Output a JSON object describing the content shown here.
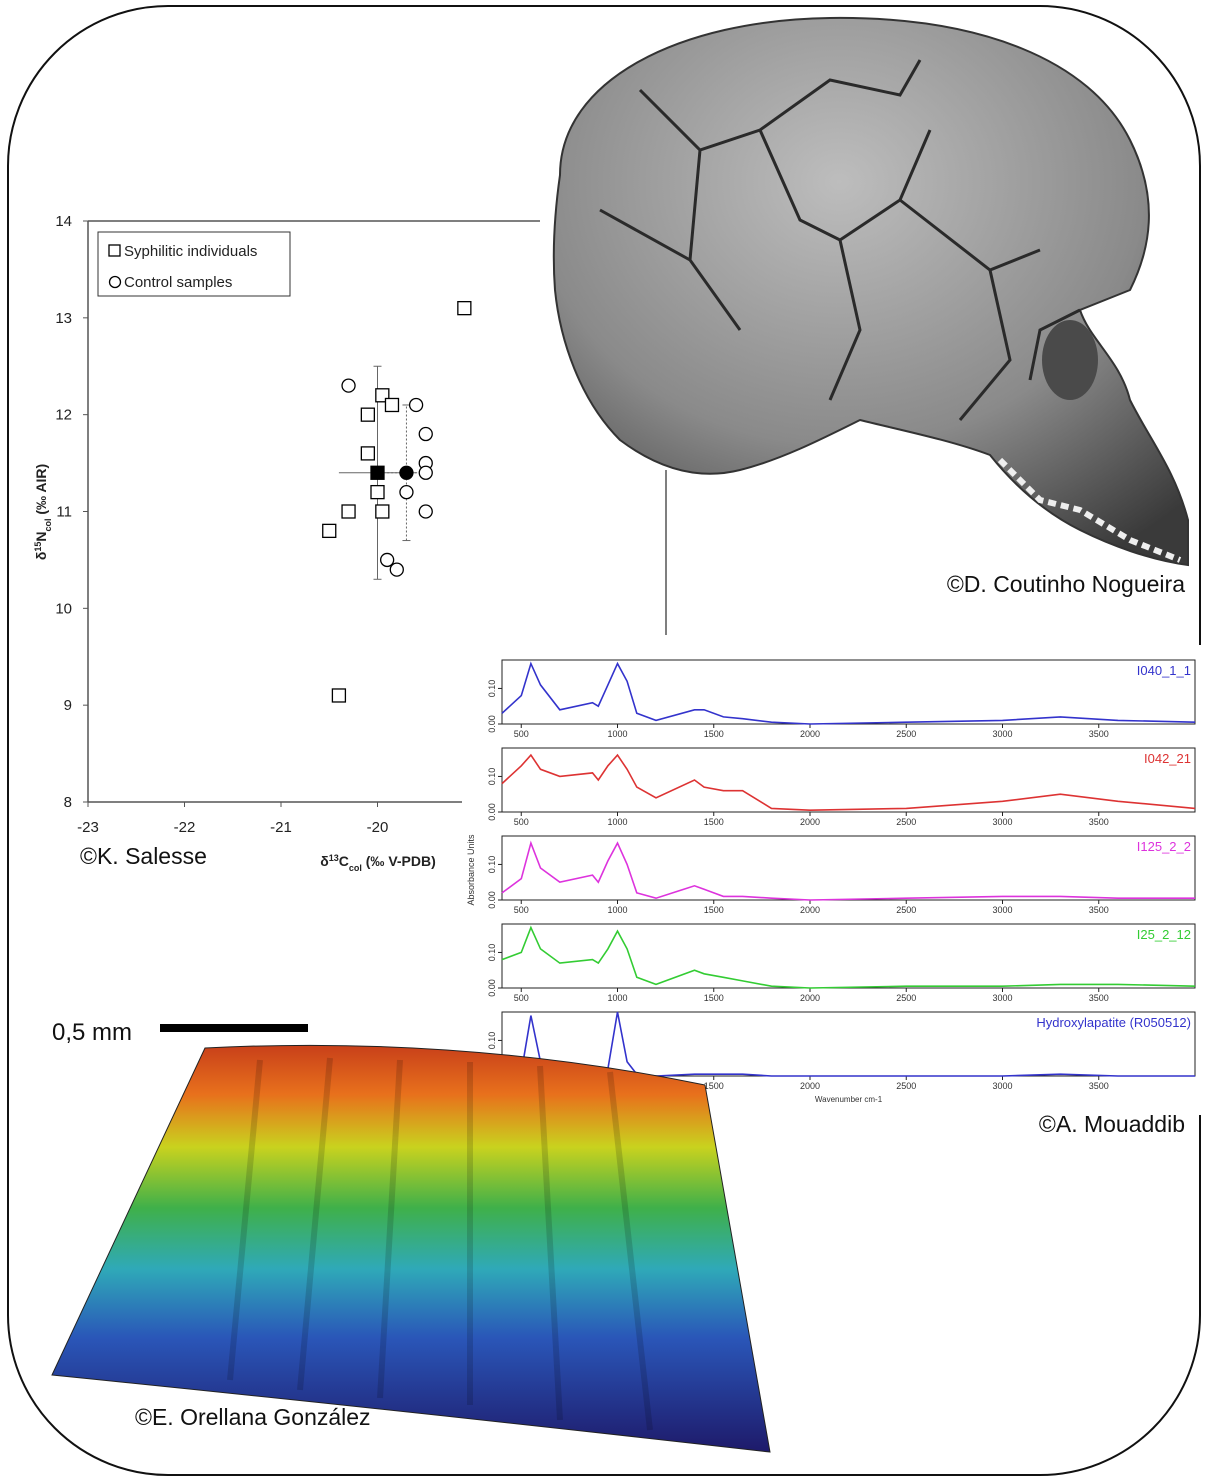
{
  "chart_data": [
    {
      "type": "scatter",
      "x_label": [
        "δ",
        "13",
        "C",
        "col",
        " (‰ V-PDB)"
      ],
      "y_label": [
        "δ",
        "15",
        "N",
        "col",
        " (‰ AIR)"
      ],
      "xlim": [
        -23,
        -19
      ],
      "xticks": [
        -23,
        -22,
        -21,
        -20
      ],
      "ylim": [
        8,
        14
      ],
      "yticks": [
        8,
        9,
        10,
        11,
        12,
        13,
        14
      ],
      "legend": "top-left",
      "series": [
        {
          "name": "Syphilitic individuals",
          "marker": "square",
          "color": "#000000",
          "x": [
            -19.1,
            -19.95,
            -19.85,
            -20.1,
            -20.1,
            -20,
            -20.3,
            -19.95,
            -20.5,
            -20.4
          ],
          "values": [
            13.1,
            12.2,
            12.1,
            12.0,
            11.6,
            11.2,
            11.0,
            11.0,
            10.8,
            9.1
          ],
          "mean_x": -20,
          "mean_y": 11.4,
          "x_error": 0.4,
          "y_error": 1.1
        },
        {
          "name": "Control samples",
          "marker": "circle",
          "color": "#000000",
          "x": [
            -20.3,
            -19.6,
            -19.5,
            -19.5,
            -19.5,
            -19.7,
            -19.5,
            -19.9,
            -19.8
          ],
          "values": [
            12.3,
            12.1,
            11.8,
            11.5,
            11.4,
            11.2,
            11.0,
            10.5,
            10.4
          ],
          "mean_x": -19.7,
          "mean_y": 11.4,
          "x_error": 0.2,
          "y_error": 0.7
        }
      ]
    },
    {
      "type": "line",
      "xlim": [
        400,
        4000
      ],
      "xticks": [
        500,
        1000,
        1500,
        2000,
        2500,
        3000,
        3500
      ],
      "ylim": [
        0,
        0.18
      ],
      "yticks": [
        {
          "value": 0,
          "label": "0.00"
        },
        {
          "value": 0.1,
          "label": "0.10"
        }
      ],
      "series": [
        {
          "name": "I040_1_1",
          "color": "#3333cc",
          "x": [
            400,
            500,
            550,
            600,
            700,
            870,
            900,
            950,
            1000,
            1050,
            1100,
            1200,
            1400,
            1450,
            1550,
            1650,
            1800,
            2000,
            2500,
            3000,
            3300,
            3600,
            4000
          ],
          "values": [
            0.03,
            0.08,
            0.17,
            0.11,
            0.04,
            0.06,
            0.05,
            0.11,
            0.17,
            0.12,
            0.03,
            0.01,
            0.04,
            0.04,
            0.02,
            0.015,
            0.005,
            0,
            0.005,
            0.01,
            0.02,
            0.01,
            0.005
          ]
        }
      ]
    },
    {
      "type": "line",
      "xlim": [
        400,
        4000
      ],
      "xticks": [
        500,
        1000,
        1500,
        2000,
        2500,
        3000,
        3500
      ],
      "ylim": [
        0,
        0.18
      ],
      "yticks": [
        {
          "value": 0,
          "label": "0.00"
        },
        {
          "value": 0.1,
          "label": "0.10"
        }
      ],
      "series": [
        {
          "name": "I042_21",
          "color": "#dd3333",
          "x": [
            400,
            500,
            550,
            600,
            700,
            870,
            900,
            950,
            1000,
            1050,
            1100,
            1200,
            1400,
            1450,
            1550,
            1650,
            1800,
            2000,
            2500,
            3000,
            3300,
            3600,
            4000
          ],
          "values": [
            0.08,
            0.13,
            0.16,
            0.12,
            0.1,
            0.11,
            0.09,
            0.13,
            0.16,
            0.12,
            0.07,
            0.04,
            0.09,
            0.07,
            0.06,
            0.06,
            0.01,
            0.005,
            0.01,
            0.03,
            0.05,
            0.03,
            0.01
          ]
        }
      ]
    },
    {
      "type": "line",
      "xlim": [
        400,
        4000
      ],
      "xticks": [
        500,
        1000,
        1500,
        2000,
        2500,
        3000,
        3500
      ],
      "ylim": [
        0,
        0.18
      ],
      "yticks": [
        {
          "value": 0,
          "label": "0.00"
        },
        {
          "value": 0.1,
          "label": "0.10"
        }
      ],
      "y_label": "Absorbance Units",
      "series": [
        {
          "name": "I125_2_2",
          "color": "#dd33dd",
          "x": [
            400,
            500,
            550,
            600,
            700,
            870,
            900,
            950,
            1000,
            1050,
            1100,
            1200,
            1400,
            1450,
            1550,
            1650,
            1800,
            2000,
            2500,
            3000,
            3300,
            3600,
            4000
          ],
          "values": [
            0.02,
            0.06,
            0.16,
            0.09,
            0.05,
            0.07,
            0.05,
            0.11,
            0.16,
            0.1,
            0.02,
            0.005,
            0.04,
            0.03,
            0.01,
            0.01,
            0.005,
            0,
            0.005,
            0.01,
            0.01,
            0.005,
            0.005
          ]
        }
      ]
    },
    {
      "type": "line",
      "xlim": [
        400,
        4000
      ],
      "xticks": [
        500,
        1000,
        1500,
        2000,
        2500,
        3000,
        3500
      ],
      "ylim": [
        0,
        0.18
      ],
      "yticks": [
        {
          "value": 0,
          "label": "0.00"
        },
        {
          "value": 0.1,
          "label": "0.10"
        }
      ],
      "series": [
        {
          "name": "I25_2_12",
          "color": "#33cc33",
          "x": [
            400,
            500,
            550,
            600,
            700,
            870,
            900,
            950,
            1000,
            1050,
            1100,
            1200,
            1400,
            1450,
            1550,
            1650,
            1800,
            2000,
            2500,
            3000,
            3300,
            3600,
            4000
          ],
          "values": [
            0.08,
            0.1,
            0.17,
            0.11,
            0.07,
            0.08,
            0.07,
            0.11,
            0.16,
            0.11,
            0.03,
            0.01,
            0.05,
            0.04,
            0.03,
            0.02,
            0.005,
            0,
            0.005,
            0.005,
            0.01,
            0.01,
            0.005
          ]
        }
      ]
    },
    {
      "type": "line",
      "xlim": [
        400,
        4000
      ],
      "xticks": [
        1500,
        2000,
        2500,
        3000,
        3500
      ],
      "ylim": [
        0,
        0.18
      ],
      "yticks": [
        {
          "value": 0.1,
          "label": "0.10"
        }
      ],
      "x_label": "Wavenumber cm-1",
      "series": [
        {
          "name": "Hydroxylapatite (R050512)",
          "color": "#3333cc",
          "x": [
            400,
            500,
            550,
            600,
            700,
            870,
            900,
            950,
            1000,
            1050,
            1100,
            1200,
            1400,
            1450,
            1550,
            1650,
            1800,
            2000,
            2500,
            3000,
            3300,
            3600,
            4000
          ],
          "values": [
            0,
            0.01,
            0.17,
            0.04,
            0.005,
            0.01,
            0.005,
            0.02,
            0.18,
            0.04,
            0.005,
            0,
            0.005,
            0.005,
            0.005,
            0.005,
            0,
            0,
            0,
            0,
            0.005,
            0,
            0
          ]
        }
      ]
    }
  ],
  "credits": [
    "©K. Salesse",
    "©D. Coutinho Nogueira",
    "©A. Mouaddib",
    "©E. Orellana González"
  ],
  "scale_bar": "0,5 mm"
}
